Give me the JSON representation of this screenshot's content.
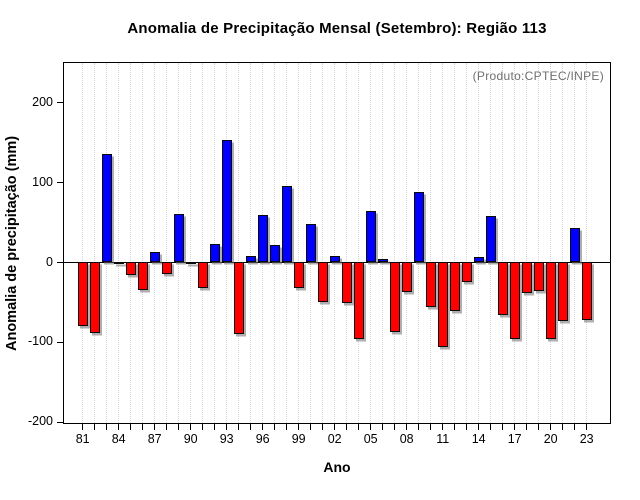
{
  "page": {
    "title": "Anomalia de Precipitação Mensal (Setembro): Região 113"
  },
  "chart_data": {
    "type": "bar",
    "title": "Anomalia de Precipitação Mensal (Setembro): Região 113",
    "xlabel": "Ano",
    "ylabel": "Anomalia de precipitação (mm)",
    "annotation": "(Produto:CPTEC/INPE)",
    "x": [
      1981,
      1982,
      1983,
      1984,
      1985,
      1986,
      1987,
      1988,
      1989,
      1990,
      1991,
      1992,
      1993,
      1994,
      1995,
      1996,
      1997,
      1998,
      1999,
      2000,
      2001,
      2002,
      2003,
      2004,
      2005,
      2006,
      2007,
      2008,
      2009,
      2010,
      2011,
      2012,
      2013,
      2014,
      2015,
      2016,
      2017,
      2018,
      2019,
      2020,
      2021,
      2022,
      2023
    ],
    "values": [
      -80,
      -89,
      135,
      -3,
      -16,
      -35,
      13,
      -15,
      60,
      -2,
      -32,
      22,
      153,
      -90,
      8,
      59,
      21,
      95,
      -33,
      48,
      -50,
      7,
      -51,
      -97,
      64,
      4,
      -88,
      -37,
      88,
      -57,
      -106,
      -62,
      -25,
      6,
      58,
      -67,
      -97,
      -39,
      -36,
      -97,
      -74,
      43,
      -73
    ],
    "x_tick_labels": [
      "81",
      "84",
      "87",
      "90",
      "93",
      "96",
      "99",
      "02",
      "05",
      "08",
      "11",
      "14",
      "17",
      "20",
      "23"
    ],
    "x_tick_step_years": 3,
    "y_ticks": [
      -200,
      -100,
      0,
      100,
      200
    ],
    "ylim": [
      -200,
      250
    ],
    "grid": "vertical-dotted",
    "legend": "none",
    "positive_color": "#0000ff",
    "negative_color": "#ff0000",
    "annotation_color": "#6f6f6f"
  }
}
